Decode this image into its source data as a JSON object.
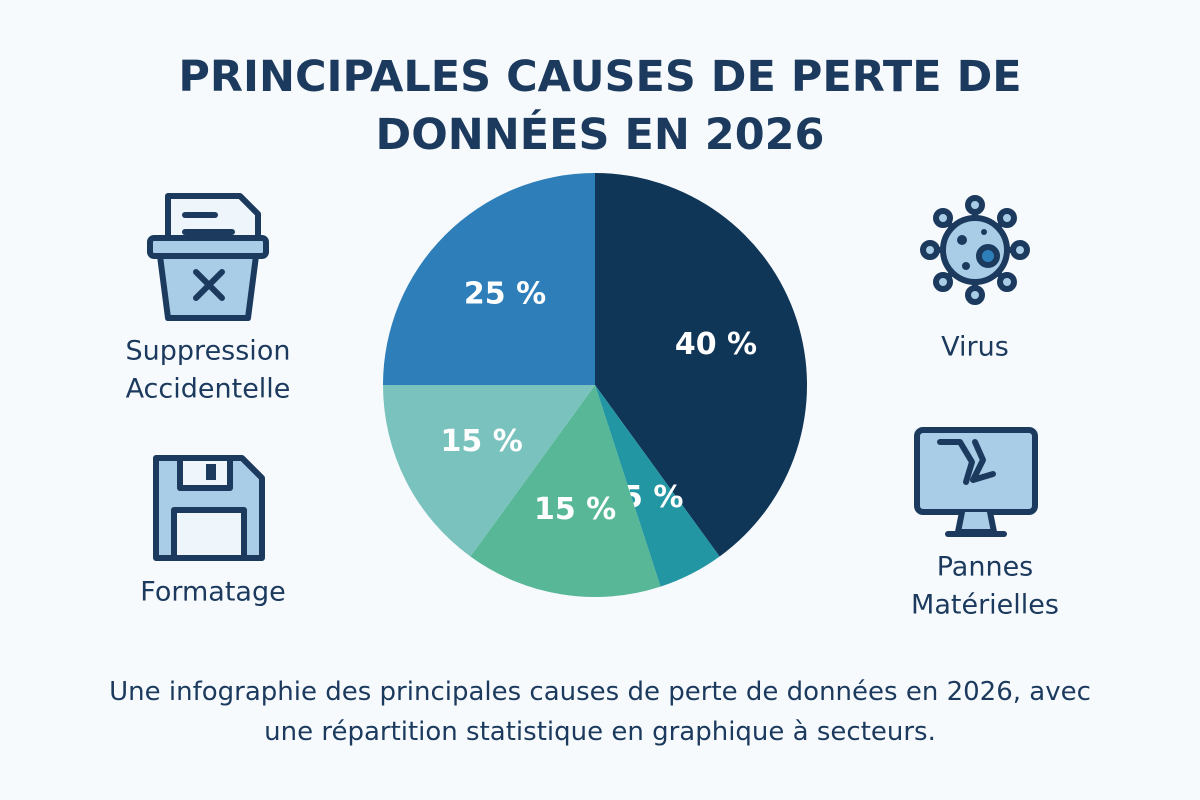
{
  "chart_data": {
    "type": "pie",
    "title": "PRINCIPALES CAUSES DE PERTE DE DONNÉES EN 2026",
    "values": [
      40,
      5,
      15,
      15,
      25
    ],
    "value_labels": [
      "40 %",
      "5 %",
      "15 %",
      "15 %",
      "25 %"
    ],
    "colors": [
      "#0f3557",
      "#2396a4",
      "#57b796",
      "#7ac2bd",
      "#2e7fb9"
    ]
  },
  "icon_labels": [
    [
      "Suppression",
      "Accidentelle"
    ],
    [
      "Formatage"
    ],
    [
      "Virus"
    ],
    [
      "Pannes",
      "Matérielles"
    ]
  ],
  "caption": "Une infographie des principales causes de perte de données en 2026, avec une répartition statistique en graphique à secteurs."
}
